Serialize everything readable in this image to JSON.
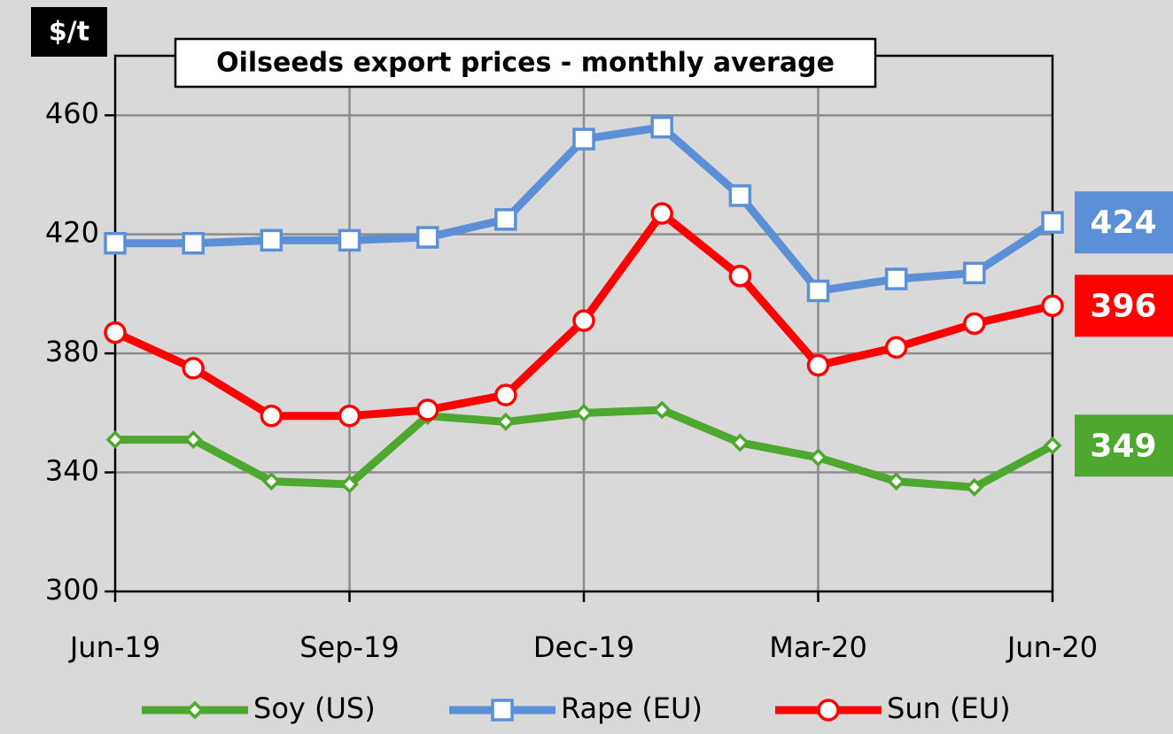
{
  "chart_data": {
    "type": "line",
    "title": "Oilseeds export prices - monthly average",
    "y_label": "$/t",
    "categories": [
      "Jun-19",
      null,
      null,
      "Sep-19",
      null,
      null,
      "Dec-19",
      null,
      null,
      "Mar-20",
      null,
      null,
      "Jun-20"
    ],
    "series": [
      {
        "name": "Soy (US)",
        "color": "#4ea72e",
        "marker": "diamond",
        "values": [
          351,
          351,
          337,
          336,
          359,
          357,
          360,
          361,
          350,
          345,
          337,
          335,
          349
        ]
      },
      {
        "name": "Rape (EU)",
        "color": "#5b8fd6",
        "marker": "square",
        "values": [
          417,
          417,
          418,
          418,
          419,
          425,
          452,
          456,
          433,
          401,
          405,
          407,
          424
        ]
      },
      {
        "name": "Sun (EU)",
        "color": "#ff0000",
        "marker": "circle",
        "values": [
          387,
          375,
          359,
          359,
          361,
          366,
          391,
          427,
          406,
          376,
          382,
          390,
          396
        ]
      }
    ],
    "ylim": [
      300,
      480
    ],
    "yticks": [
      300,
      340,
      380,
      420,
      460
    ],
    "grid": true,
    "legend": "bottom"
  }
}
